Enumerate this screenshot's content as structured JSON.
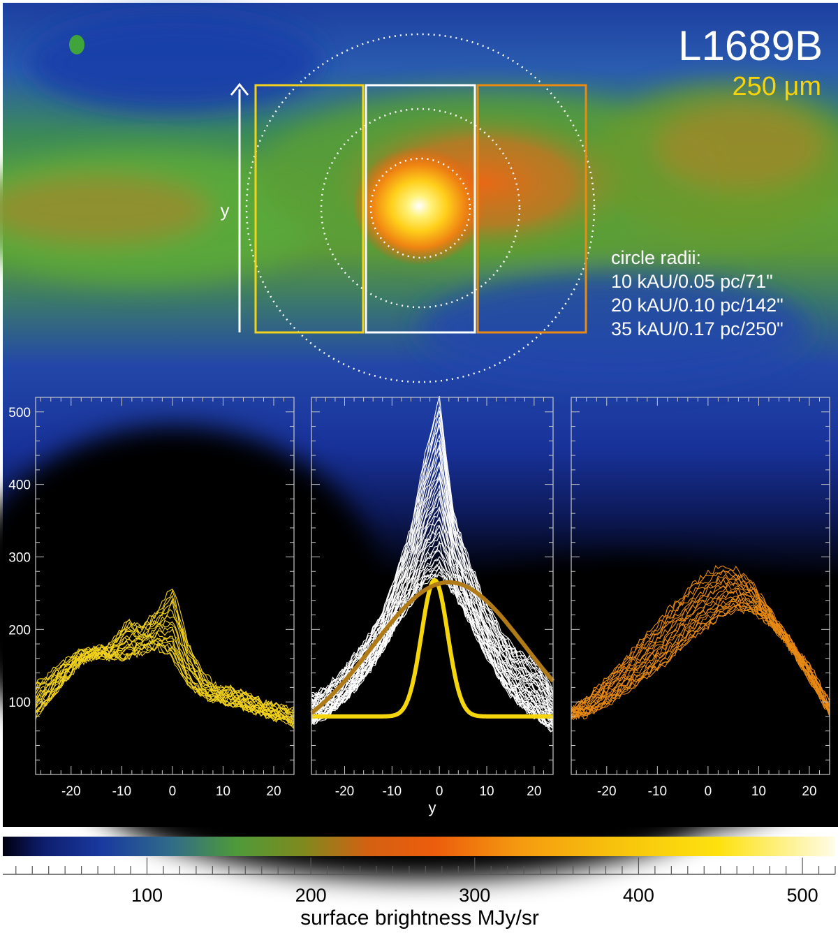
{
  "header": {
    "object": "L1689B",
    "wavelength": "250 μm",
    "y_arrow_label": "y"
  },
  "circles": {
    "title": "circle radii:",
    "lines": [
      "10 kAU/0.05 pc/71\"",
      "20 kAU/0.10 pc/142\"",
      "35 kAU/0.17 pc/250\""
    ]
  },
  "colors": {
    "left_strip": "#f2d21c",
    "center_strip": "#ffffff",
    "right_strip": "#e88a14",
    "model_narrow": "#f5d60c",
    "model_broad": "#b07a16"
  },
  "chart_data": [
    {
      "type": "line",
      "name": "left",
      "xlim": [
        -27,
        24
      ],
      "ylim": [
        0,
        520
      ],
      "x_ticks": [
        -20,
        -10,
        0,
        10,
        20
      ],
      "y_ticks": [
        100,
        200,
        300,
        400,
        500
      ],
      "xlabel": "",
      "profile_count": 20,
      "x": [
        -27,
        -24,
        -21,
        -18,
        -15,
        -12,
        -9,
        -6,
        -3,
        0,
        3,
        6,
        9,
        12,
        15,
        18,
        21,
        24
      ],
      "envelope_low": [
        80,
        105,
        130,
        155,
        162,
        160,
        160,
        168,
        175,
        160,
        125,
        105,
        100,
        95,
        90,
        82,
        75,
        68
      ],
      "envelope_high": [
        125,
        140,
        158,
        172,
        175,
        180,
        215,
        205,
        225,
        260,
        185,
        140,
        120,
        120,
        112,
        100,
        95,
        90
      ]
    },
    {
      "type": "line",
      "name": "center",
      "xlim": [
        -27,
        24
      ],
      "ylim": [
        0,
        520
      ],
      "x_ticks": [
        -20,
        -10,
        0,
        10,
        20
      ],
      "xlabel": "y",
      "profile_count": 40,
      "x": [
        -27,
        -24,
        -21,
        -18,
        -15,
        -12,
        -9,
        -6,
        -3,
        0,
        3,
        6,
        9,
        12,
        15,
        18,
        21,
        24
      ],
      "envelope_low": [
        72,
        80,
        95,
        115,
        140,
        170,
        205,
        235,
        265,
        275,
        250,
        215,
        175,
        140,
        110,
        90,
        75,
        60
      ],
      "envelope_high": [
        110,
        120,
        138,
        165,
        190,
        225,
        280,
        340,
        440,
        520,
        360,
        300,
        250,
        210,
        180,
        165,
        150,
        115
      ],
      "models": [
        {
          "name": "narrow",
          "baseline": 80,
          "peak": 268,
          "center": -1,
          "fwhm": 6.5
        },
        {
          "name": "broad",
          "baseline": 40,
          "peak": 265,
          "center": 2,
          "fwhm": 38
        }
      ]
    },
    {
      "type": "line",
      "name": "right",
      "xlim": [
        -27,
        24
      ],
      "ylim": [
        0,
        520
      ],
      "x_ticks": [
        -20,
        -10,
        0,
        10,
        20
      ],
      "xlabel": "",
      "profile_count": 20,
      "x": [
        -27,
        -24,
        -21,
        -18,
        -15,
        -12,
        -9,
        -6,
        -3,
        0,
        3,
        6,
        9,
        12,
        15,
        18,
        21,
        24
      ],
      "envelope_low": [
        78,
        82,
        92,
        105,
        120,
        135,
        150,
        170,
        190,
        205,
        220,
        228,
        225,
        208,
        185,
        155,
        120,
        80
      ],
      "envelope_high": [
        92,
        105,
        125,
        148,
        172,
        195,
        218,
        240,
        262,
        278,
        288,
        282,
        262,
        230,
        198,
        170,
        140,
        100
      ]
    }
  ],
  "colorbar": {
    "ticks": [
      100,
      200,
      300,
      400,
      500
    ],
    "range": [
      12,
      520
    ],
    "label": "surface brightness MJy/sr"
  }
}
